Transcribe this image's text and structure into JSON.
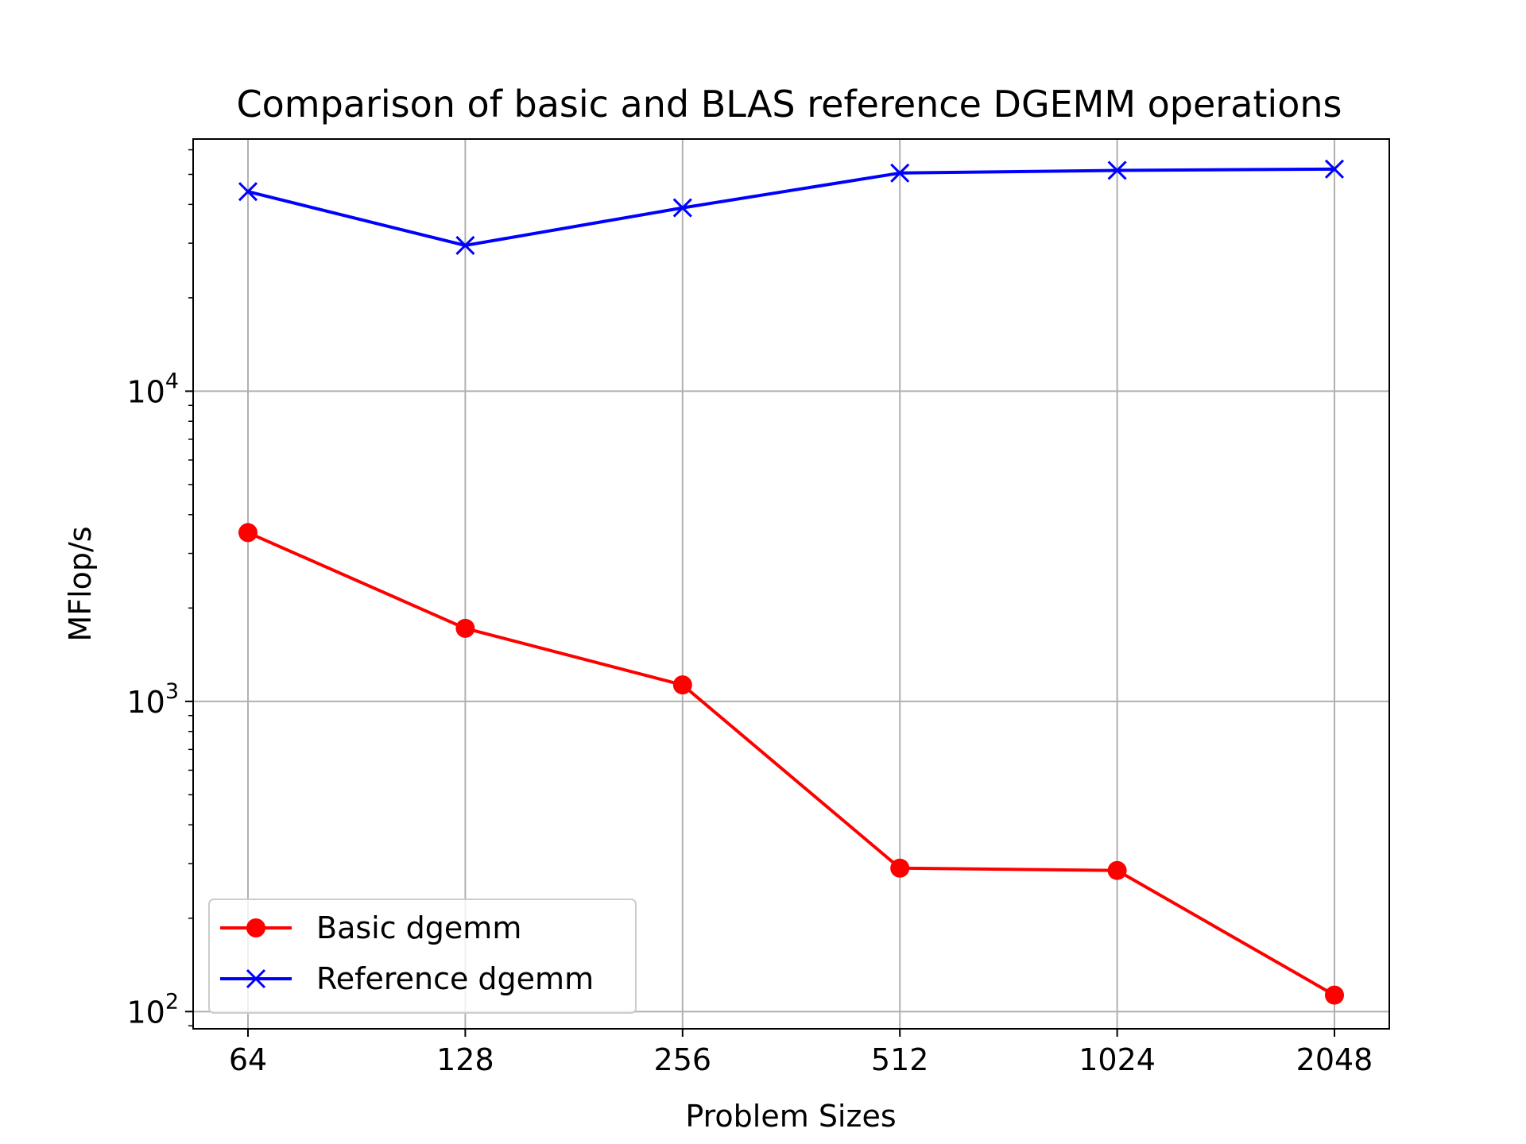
{
  "chart_data": {
    "type": "line",
    "title": "Comparison of basic and BLAS reference DGEMM operations",
    "xlabel": "Problem Sizes",
    "ylabel": "MFlop/s",
    "yscale": "log",
    "ylim": [
      88,
      65000
    ],
    "grid": true,
    "legend_position": "lower-left",
    "categories": [
      "64",
      "128",
      "256",
      "512",
      "1024",
      "2048"
    ],
    "yticks": [
      {
        "base": "10",
        "exp": "2",
        "value": 100
      },
      {
        "base": "10",
        "exp": "3",
        "value": 1000
      },
      {
        "base": "10",
        "exp": "4",
        "value": 10000
      }
    ],
    "series": [
      {
        "name": "Basic dgemm",
        "color": "#ff0000",
        "marker": "circle",
        "values": [
          3500,
          1720,
          1130,
          290,
          285,
          113
        ]
      },
      {
        "name": "Reference dgemm",
        "color": "#0000ff",
        "marker": "x",
        "values": [
          44000,
          29500,
          39000,
          50500,
          51500,
          52000
        ]
      }
    ]
  }
}
